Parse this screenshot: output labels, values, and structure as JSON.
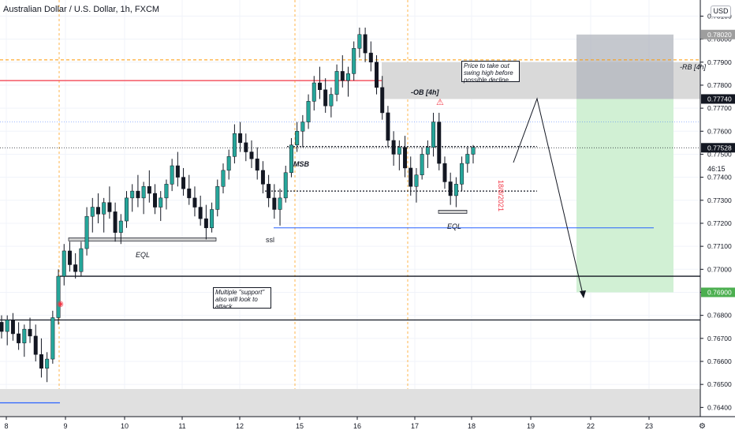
{
  "header": {
    "symbol_title": "Australian Dollar / U.S. Dollar, 1h, FXCM",
    "currency": "USD"
  },
  "colors": {
    "up": "#26a69a",
    "down": "#131722",
    "ob_line": "#f23645",
    "rb_line": "#ff9800",
    "blue_line": "#2962ff",
    "target_zone": "#d1f0d4",
    "stop_zone": "#b2b5be",
    "grid": "#f0f3fa",
    "price_badge_green": "#4caf50",
    "price_badge_dark": "#131722"
  },
  "annotations": {
    "ob_label": "-OB [4h]",
    "rb_label": "-RB [4h]",
    "msb_label": "MSB",
    "ssl_label": "ssl",
    "eql_left": "EQL",
    "eql_right": "EQL",
    "swing_note": "Price to take out swing high before possible decline",
    "support_note": "Multiple \"support\" also will look to attack",
    "date_vertical": "18/8/2021"
  },
  "price_axis": {
    "labels": [
      "0.78100",
      "0.78000",
      "0.77900",
      "0.77800",
      "0.77700",
      "0.77600",
      "0.77500",
      "0.77400",
      "0.77300",
      "0.77200",
      "0.77100",
      "0.77000",
      "0.76900",
      "0.76800",
      "0.76700",
      "0.76600",
      "0.76500",
      "0.76400"
    ],
    "badges": [
      {
        "text": "0.78020",
        "style": "gray"
      },
      {
        "text": "0.77740",
        "style": "dark"
      },
      {
        "text": "0.77528",
        "style": "dark"
      },
      {
        "text": "0.76900",
        "style": "green"
      }
    ],
    "countdown": "46:15"
  },
  "time_axis": {
    "labels": [
      "8",
      "9",
      "10",
      "11",
      "12",
      "15",
      "16",
      "17",
      "18",
      "19",
      "22",
      "23"
    ]
  },
  "chart_data": {
    "type": "candlestick",
    "title": "Australian Dollar / U.S. Dollar, 1h, FXCM",
    "xlabel": "",
    "ylabel": "",
    "ylim": [
      0.7636,
      0.7817
    ],
    "x_categories": [
      "8",
      "9",
      "10",
      "11",
      "12",
      "15",
      "16",
      "17",
      "18",
      "19",
      "22",
      "23"
    ],
    "levels": [
      {
        "name": "-OB [4h]",
        "value": 0.7782
      },
      {
        "name": "-RB [4h]",
        "value": 0.7791
      },
      {
        "name": "EQL",
        "value": 0.7713
      },
      {
        "name": "EQL",
        "value": 0.7725
      },
      {
        "name": "ssl",
        "value": 0.7718
      },
      {
        "name": "MSB",
        "value": 0.7754
      },
      {
        "name": "support",
        "value": 0.7697
      },
      {
        "name": "support",
        "value": 0.7678
      }
    ],
    "zones": [
      {
        "name": "-OB [4h]",
        "from": 0.7774,
        "to": 0.779
      },
      {
        "name": "stop",
        "from": 0.7774,
        "to": 0.7802
      },
      {
        "name": "target",
        "from": 0.769,
        "to": 0.7774
      },
      {
        "name": "lower",
        "from": 0.7636,
        "to": 0.7648
      }
    ],
    "position": {
      "entry": 0.7774,
      "stop": 0.7802,
      "target": 0.769
    },
    "last_price": 0.77528,
    "candles": [
      [
        0.7677,
        0.768,
        0.767,
        0.7673
      ],
      [
        0.7673,
        0.768,
        0.7667,
        0.7678
      ],
      [
        0.7678,
        0.7681,
        0.7669,
        0.7672
      ],
      [
        0.7672,
        0.7677,
        0.7665,
        0.7668
      ],
      [
        0.7668,
        0.7676,
        0.7662,
        0.7674
      ],
      [
        0.7674,
        0.7679,
        0.7668,
        0.7671
      ],
      [
        0.7671,
        0.7676,
        0.766,
        0.7663
      ],
      [
        0.7663,
        0.767,
        0.7653,
        0.7657
      ],
      [
        0.7657,
        0.7664,
        0.7651,
        0.7661
      ],
      [
        0.7661,
        0.7682,
        0.7659,
        0.7679
      ],
      [
        0.7679,
        0.77,
        0.7676,
        0.7697
      ],
      [
        0.7697,
        0.7711,
        0.7693,
        0.7708
      ],
      [
        0.7708,
        0.7712,
        0.7699,
        0.7702
      ],
      [
        0.7702,
        0.7707,
        0.7696,
        0.7699
      ],
      [
        0.7699,
        0.7712,
        0.7697,
        0.7709
      ],
      [
        0.7709,
        0.7727,
        0.7706,
        0.7723
      ],
      [
        0.7723,
        0.7731,
        0.7716,
        0.7727
      ],
      [
        0.7727,
        0.7733,
        0.772,
        0.7724
      ],
      [
        0.7724,
        0.7731,
        0.7716,
        0.7729
      ],
      [
        0.7729,
        0.7736,
        0.7722,
        0.7725
      ],
      [
        0.7725,
        0.7729,
        0.7712,
        0.7716
      ],
      [
        0.7716,
        0.7724,
        0.7711,
        0.7721
      ],
      [
        0.7721,
        0.7734,
        0.7718,
        0.7731
      ],
      [
        0.7731,
        0.7737,
        0.7725,
        0.7734
      ],
      [
        0.7734,
        0.7741,
        0.7727,
        0.7731
      ],
      [
        0.7731,
        0.7738,
        0.7724,
        0.7736
      ],
      [
        0.7736,
        0.7743,
        0.7729,
        0.7733
      ],
      [
        0.7733,
        0.7737,
        0.7724,
        0.7727
      ],
      [
        0.7727,
        0.7734,
        0.7721,
        0.7731
      ],
      [
        0.7731,
        0.7739,
        0.7726,
        0.7737
      ],
      [
        0.7737,
        0.7748,
        0.7734,
        0.7745
      ],
      [
        0.7745,
        0.7751,
        0.7736,
        0.774
      ],
      [
        0.774,
        0.7744,
        0.7732,
        0.7735
      ],
      [
        0.7735,
        0.7741,
        0.7728,
        0.7731
      ],
      [
        0.7731,
        0.7736,
        0.7723,
        0.7727
      ],
      [
        0.7727,
        0.7732,
        0.7719,
        0.7722
      ],
      [
        0.7722,
        0.7728,
        0.7713,
        0.7718
      ],
      [
        0.7718,
        0.7729,
        0.7716,
        0.7726
      ],
      [
        0.7726,
        0.7739,
        0.7723,
        0.7736
      ],
      [
        0.7736,
        0.7746,
        0.7733,
        0.7743
      ],
      [
        0.7743,
        0.7752,
        0.7739,
        0.7749
      ],
      [
        0.7749,
        0.7763,
        0.7746,
        0.7759
      ],
      [
        0.7759,
        0.7764,
        0.7751,
        0.7755
      ],
      [
        0.7755,
        0.7759,
        0.7747,
        0.7751
      ],
      [
        0.7751,
        0.7756,
        0.7744,
        0.7748
      ],
      [
        0.7748,
        0.7753,
        0.7739,
        0.7743
      ],
      [
        0.7743,
        0.7747,
        0.7733,
        0.7737
      ],
      [
        0.7737,
        0.7741,
        0.7727,
        0.7731
      ],
      [
        0.7731,
        0.7737,
        0.7722,
        0.7726
      ],
      [
        0.7726,
        0.7735,
        0.7719,
        0.7731
      ],
      [
        0.7731,
        0.7745,
        0.7729,
        0.7742
      ],
      [
        0.7742,
        0.7757,
        0.774,
        0.7754
      ],
      [
        0.7754,
        0.7764,
        0.7751,
        0.776
      ],
      [
        0.776,
        0.7767,
        0.7753,
        0.7764
      ],
      [
        0.7764,
        0.7776,
        0.7761,
        0.7773
      ],
      [
        0.7773,
        0.7784,
        0.7769,
        0.7781
      ],
      [
        0.7781,
        0.7788,
        0.7774,
        0.7778
      ],
      [
        0.7778,
        0.7783,
        0.7768,
        0.7771
      ],
      [
        0.7771,
        0.7779,
        0.7766,
        0.7776
      ],
      [
        0.7776,
        0.7789,
        0.7773,
        0.7786
      ],
      [
        0.7786,
        0.7793,
        0.7779,
        0.7782
      ],
      [
        0.7782,
        0.7788,
        0.7775,
        0.7785
      ],
      [
        0.7785,
        0.7799,
        0.7782,
        0.7796
      ],
      [
        0.7796,
        0.7805,
        0.7792,
        0.7802
      ],
      [
        0.7802,
        0.7805,
        0.779,
        0.7794
      ],
      [
        0.7794,
        0.7799,
        0.7786,
        0.779
      ],
      [
        0.779,
        0.7793,
        0.7776,
        0.7779
      ],
      [
        0.7779,
        0.7784,
        0.7765,
        0.7768
      ],
      [
        0.7768,
        0.7771,
        0.7753,
        0.7756
      ],
      [
        0.7756,
        0.776,
        0.7745,
        0.775
      ],
      [
        0.775,
        0.7756,
        0.7743,
        0.7753
      ],
      [
        0.7753,
        0.7758,
        0.774,
        0.7744
      ],
      [
        0.7744,
        0.7749,
        0.7732,
        0.7736
      ],
      [
        0.7736,
        0.7744,
        0.7729,
        0.7741
      ],
      [
        0.7741,
        0.7753,
        0.7739,
        0.775
      ],
      [
        0.775,
        0.7756,
        0.7744,
        0.7753
      ],
      [
        0.7753,
        0.7768,
        0.7749,
        0.7764
      ],
      [
        0.7764,
        0.7768,
        0.7743,
        0.7746
      ],
      [
        0.7746,
        0.7749,
        0.7735,
        0.7738
      ],
      [
        0.7738,
        0.7742,
        0.7728,
        0.7732
      ],
      [
        0.7732,
        0.774,
        0.7727,
        0.7737
      ],
      [
        0.7737,
        0.7749,
        0.7734,
        0.7746
      ],
      [
        0.7746,
        0.7753,
        0.7742,
        0.775
      ],
      [
        0.775,
        0.7754,
        0.7746,
        0.7753
      ]
    ]
  }
}
